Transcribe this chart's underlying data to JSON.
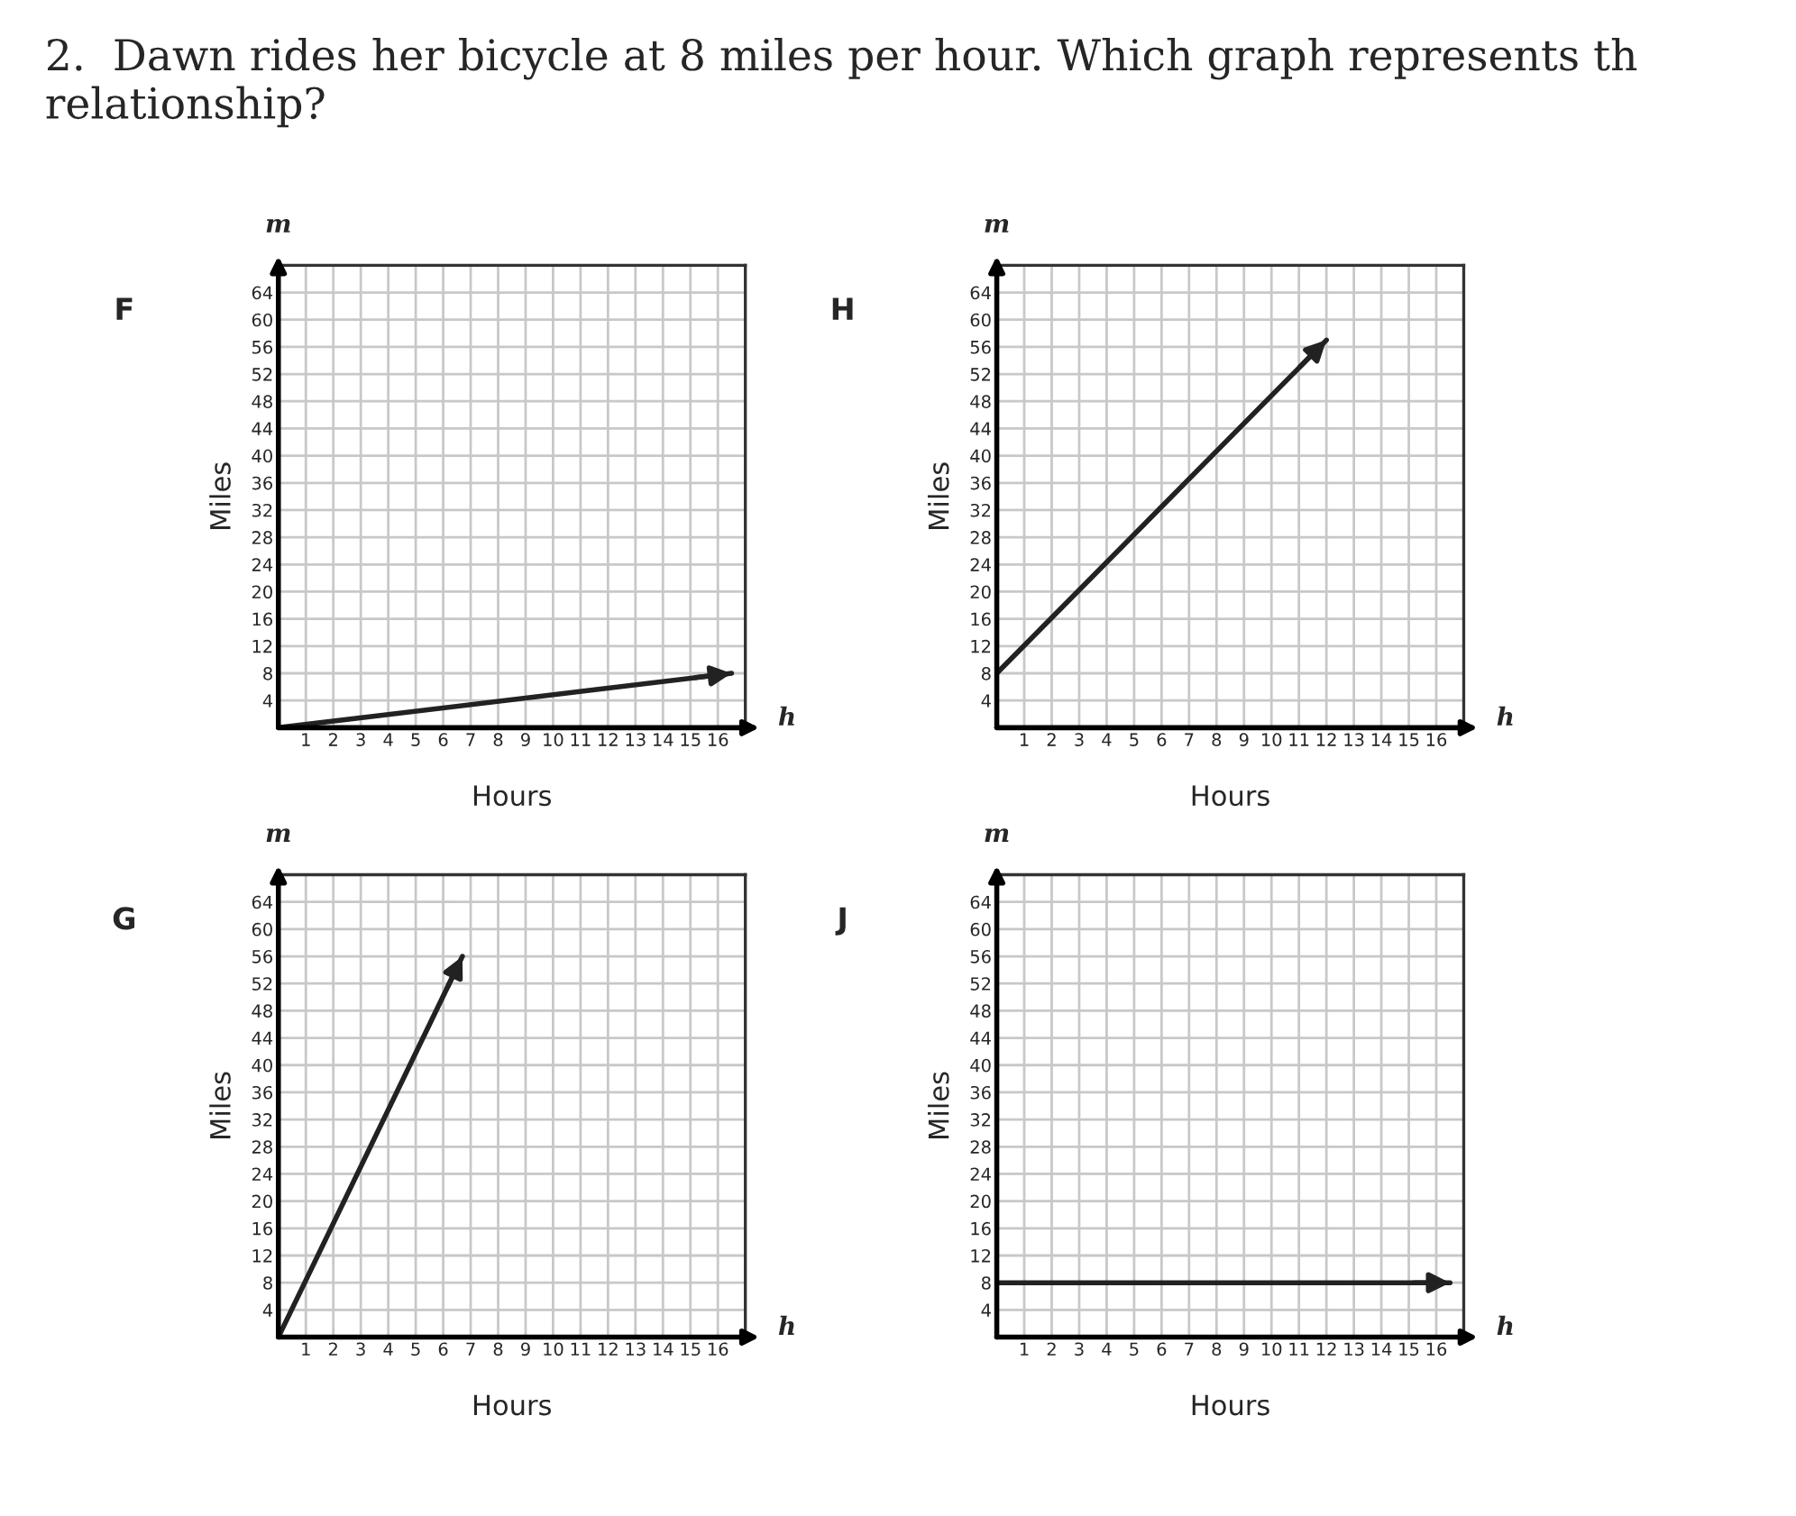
{
  "chart_data": [
    {
      "type": "other",
      "title": "2.  Dawn rides her bicycle at 8 miles per hour. Which graph represents th relationship?"
    },
    {
      "type": "line",
      "title": "F",
      "xlabel": "Hours",
      "ylabel": "Miles",
      "annotations": [
        "m",
        "h"
      ],
      "xlim": [
        0,
        17
      ],
      "ylim": [
        0,
        68
      ],
      "xticks": [
        1,
        2,
        3,
        4,
        5,
        6,
        7,
        8,
        9,
        10,
        11,
        12,
        13,
        14,
        15,
        16
      ],
      "yticks": [
        4,
        8,
        12,
        16,
        20,
        24,
        28,
        32,
        36,
        40,
        44,
        48,
        52,
        56,
        60,
        64
      ],
      "grid": true,
      "series": [
        {
          "color": "#222222",
          "x": [
            0,
            16.5
          ],
          "values": [
            0,
            8
          ]
        }
      ]
    },
    {
      "type": "line",
      "title": "H",
      "xlabel": "Hours",
      "ylabel": "Miles",
      "annotations": [
        "m",
        "h"
      ],
      "xlim": [
        0,
        17
      ],
      "ylim": [
        0,
        68
      ],
      "xticks": [
        1,
        2,
        3,
        4,
        5,
        6,
        7,
        8,
        9,
        10,
        11,
        12,
        13,
        14,
        15,
        16
      ],
      "yticks": [
        4,
        8,
        12,
        16,
        20,
        24,
        28,
        32,
        36,
        40,
        44,
        48,
        52,
        56,
        60,
        64
      ],
      "grid": true,
      "series": [
        {
          "color": "#222222",
          "x": [
            0,
            12
          ],
          "values": [
            8,
            57
          ]
        }
      ]
    },
    {
      "type": "line",
      "title": "G",
      "xlabel": "Hours",
      "ylabel": "Miles",
      "annotations": [
        "m",
        "h"
      ],
      "xlim": [
        0,
        17
      ],
      "ylim": [
        0,
        68
      ],
      "xticks": [
        1,
        2,
        3,
        4,
        5,
        6,
        7,
        8,
        9,
        10,
        11,
        12,
        13,
        14,
        15,
        16
      ],
      "yticks": [
        4,
        8,
        12,
        16,
        20,
        24,
        28,
        32,
        36,
        40,
        44,
        48,
        52,
        56,
        60,
        64
      ],
      "grid": true,
      "series": [
        {
          "color": "#222222",
          "x": [
            0,
            6.7
          ],
          "values": [
            0,
            56
          ]
        }
      ]
    },
    {
      "type": "line",
      "title": "J",
      "xlabel": "Hours",
      "ylabel": "Miles",
      "annotations": [
        "m",
        "h"
      ],
      "xlim": [
        0,
        17
      ],
      "ylim": [
        0,
        68
      ],
      "xticks": [
        1,
        2,
        3,
        4,
        5,
        6,
        7,
        8,
        9,
        10,
        11,
        12,
        13,
        14,
        15,
        16
      ],
      "yticks": [
        4,
        8,
        12,
        16,
        20,
        24,
        28,
        32,
        36,
        40,
        44,
        48,
        52,
        56,
        60,
        64
      ],
      "grid": true,
      "series": [
        {
          "color": "#222222",
          "x": [
            0,
            16.5
          ],
          "values": [
            8,
            8
          ]
        }
      ]
    }
  ]
}
